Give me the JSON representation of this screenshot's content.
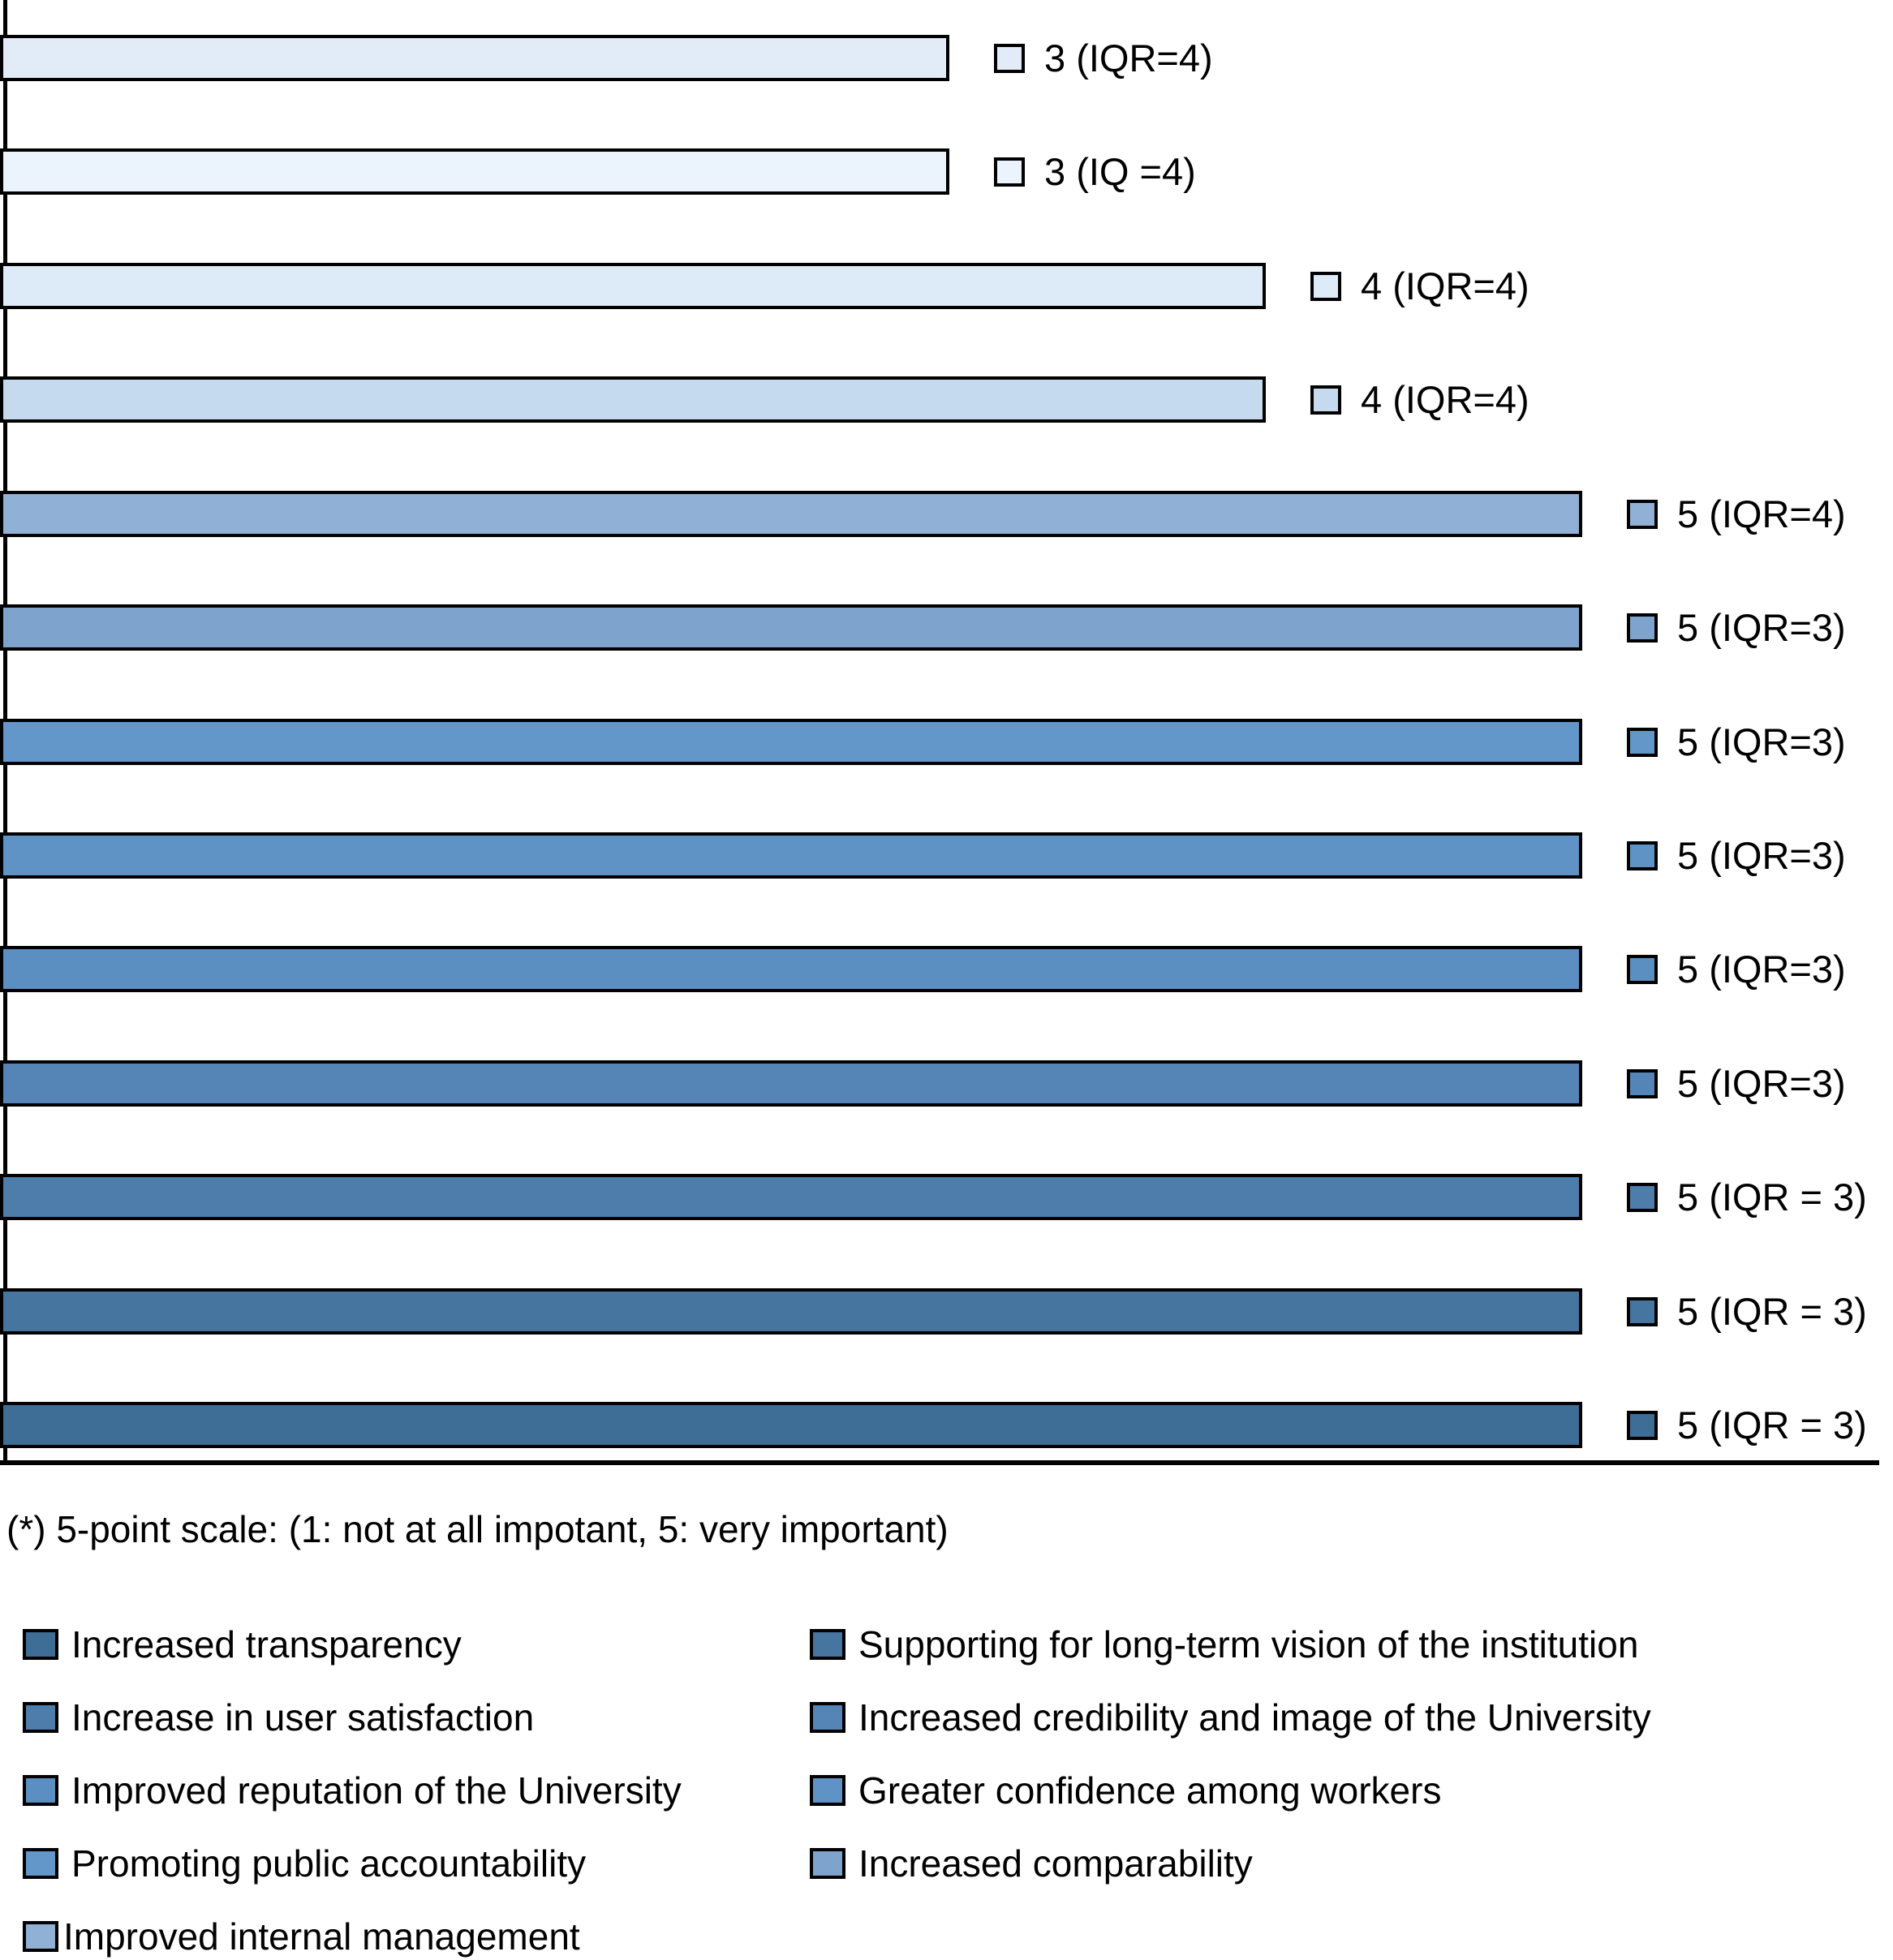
{
  "chart_data": {
    "type": "bar",
    "orientation": "horizontal",
    "title": "",
    "xlabel": "",
    "ylabel": "",
    "xlim": [
      0,
      5
    ],
    "grid": false,
    "value_meaning": "median importance rating on 5-point scale (bar length = median, annotation shows median and IQR)",
    "bars": [
      {
        "label": "3 (IQR=4)",
        "median": 3,
        "iqr": 4,
        "color": "#e1ecf8"
      },
      {
        "label": "3 (IQ =4)",
        "median": 3,
        "iqr": 4,
        "color": "#ebf4fc"
      },
      {
        "label": "4 (IQR=4)",
        "median": 4,
        "iqr": 4,
        "color": "#ddeaf7"
      },
      {
        "label": "4 (IQR=4)",
        "median": 4,
        "iqr": 4,
        "color": "#c6daef"
      },
      {
        "label": "5 (IQR=4)",
        "median": 5,
        "iqr": 4,
        "color": "#91b0d5"
      },
      {
        "label": "5 (IQR=3)",
        "median": 5,
        "iqr": 3,
        "color": "#7ea4cd"
      },
      {
        "label": "5 (IQR=3)",
        "median": 5,
        "iqr": 3,
        "color": "#6397c9"
      },
      {
        "label": "5 (IQR=3)",
        "median": 5,
        "iqr": 3,
        "color": "#6093c5"
      },
      {
        "label": "5 (IQR=3)",
        "median": 5,
        "iqr": 3,
        "color": "#5c8fc1"
      },
      {
        "label": "5 (IQR=3)",
        "median": 5,
        "iqr": 3,
        "color": "#5585b6"
      },
      {
        "label": "5 (IQR = 3)",
        "median": 5,
        "iqr": 3,
        "color": "#4e7dab"
      },
      {
        "label": "5 (IQR = 3)",
        "median": 5,
        "iqr": 3,
        "color": "#46759f"
      },
      {
        "label": "5 (IQR = 3)",
        "median": 5,
        "iqr": 3,
        "color": "#3e6d95"
      }
    ],
    "legend_position": "bottom, two columns",
    "legend": [
      {
        "label": "Increased transparency",
        "color": "#3e6d95"
      },
      {
        "label": "Supporting for long-term vision of the institution",
        "color": "#46759f"
      },
      {
        "label": "Increase in user satisfaction",
        "color": "#4e7dab"
      },
      {
        "label": "Increased credibility and image of the University",
        "color": "#5585b6"
      },
      {
        "label": "Improved reputation of the University",
        "color": "#5c8fc1"
      },
      {
        "label": "Greater confidence among workers",
        "color": "#6093c5"
      },
      {
        "label": "Promoting public accountability",
        "color": "#6397c9"
      },
      {
        "label": "Increased comparability",
        "color": "#7ea4cd"
      },
      {
        "label": "Improved internal management",
        "color": "#91b0d5"
      }
    ],
    "footnote": "(*) 5-point scale: (1: not at all impotant, 5: very important)"
  }
}
